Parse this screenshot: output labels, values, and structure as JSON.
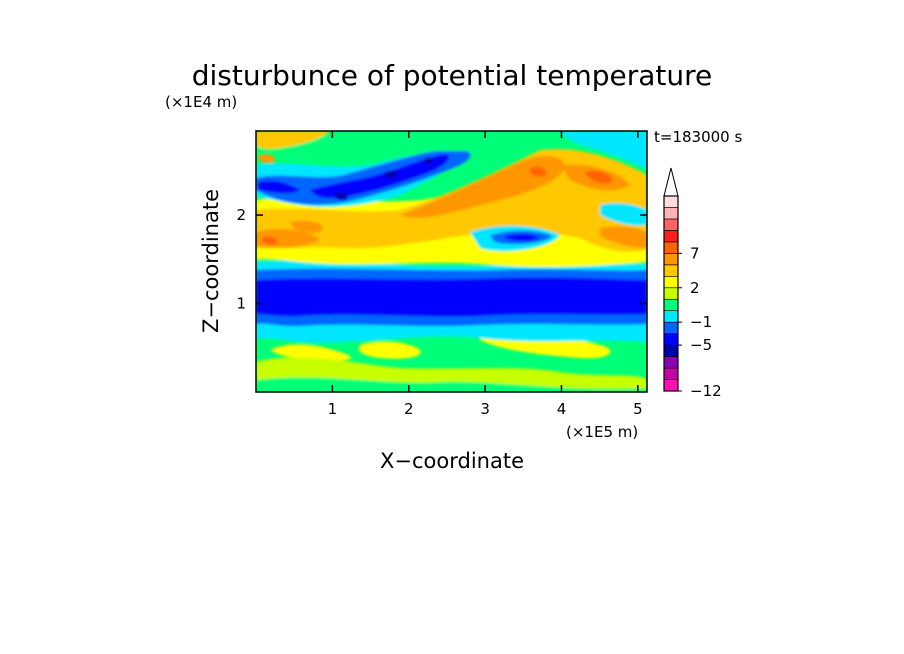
{
  "chart_data": {
    "type": "heatmap",
    "title": "disturbunce of potential temperature",
    "xlabel": "X−coordinate",
    "ylabel": "Z−coordinate",
    "x_unit": "(×1E5 m)",
    "y_unit": "(×1E4 m)",
    "time_label": "t=183000 s",
    "xlim": [
      0,
      5.12
    ],
    "ylim": [
      0,
      2.95
    ],
    "x_ticks": [
      1,
      2,
      3,
      4,
      5
    ],
    "y_ticks": [
      1,
      2
    ],
    "grid": false,
    "colorbar": {
      "position": "right",
      "extend": "max",
      "tick_labels": [
        "7",
        "2",
        "−1",
        "−5",
        "−12"
      ],
      "colors": [
        "#ff10b0",
        "#c800a8",
        "#8c00b4",
        "#0000b4",
        "#0000ff",
        "#0066ff",
        "#00e6ff",
        "#00ff78",
        "#c8ff00",
        "#ffff00",
        "#ffc800",
        "#ff9600",
        "#ff6400",
        "#ff1e1e",
        "#ff6464",
        "#ffb4b4",
        "#ffdcdc"
      ],
      "levels_shown_to_top": "extend-arrow"
    },
    "features": [
      {
        "name": "lower warm layer",
        "z_range": [
          0,
          0.6
        ],
        "value_sign": "positive, weak"
      },
      {
        "name": "cold band",
        "z_range": [
          0.8,
          1.35
        ],
        "value_sign": "negative, strong"
      },
      {
        "name": "middle warm layer",
        "z_range": [
          1.5,
          2.8
        ],
        "value_sign": "positive"
      },
      {
        "name": "upper cold band",
        "z_range": [
          2.1,
          2.65
        ],
        "value_sign": "negative"
      }
    ]
  }
}
